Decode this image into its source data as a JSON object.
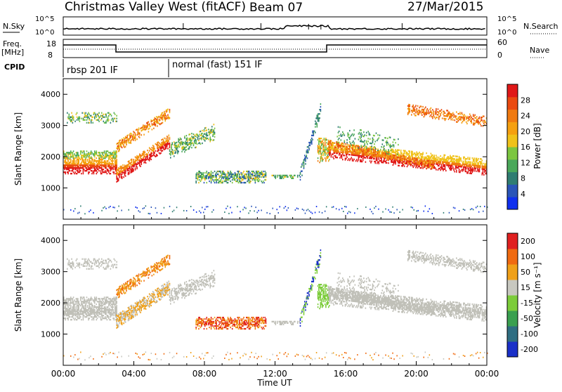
{
  "header": {
    "station": "Christmas Valley West (fitACF)",
    "beam": "Beam 07",
    "date": "27/Mar/2015"
  },
  "top_panels": {
    "nsky": {
      "label": "N.Sky",
      "ticks": [
        "10^5",
        "10^0"
      ],
      "right_ticks": [
        "10^5",
        "10^0"
      ],
      "right_label": "N.Search"
    },
    "freq": {
      "label_line1": "Freq.",
      "label_line2": "[MHz]",
      "ticks": [
        "18",
        "8"
      ],
      "right_ticks": [
        "60",
        "0"
      ],
      "right_label": "Nave"
    },
    "cpid": {
      "label": "CPID",
      "modes": [
        {
          "name": "rbsp 201 IF",
          "start_hour": 0
        },
        {
          "name": "normal (fast) 151 IF",
          "start_hour": 6
        }
      ]
    }
  },
  "chart_data": [
    {
      "type": "heatmap",
      "name": "power-panel",
      "ylabel": "Slant Range [km]",
      "yticks": [
        "1000",
        "2000",
        "3000",
        "4000"
      ],
      "ylim": [
        0,
        4500
      ],
      "xlim_hours": [
        0,
        24
      ],
      "colorbar": {
        "label": "Power [dB]",
        "ticks": [
          "4",
          "8",
          "12",
          "16",
          "20",
          "24",
          "28"
        ],
        "colors": [
          "#1030ee",
          "#2a55b8",
          "#2f7d72",
          "#4aa85a",
          "#7cc640",
          "#f0c21a",
          "#f5a010",
          "#f07a10",
          "#ea4a10",
          "#e01818"
        ]
      }
    },
    {
      "type": "heatmap",
      "name": "velocity-panel",
      "ylabel": "Slant Range [km]",
      "yticks": [
        "1000",
        "2000",
        "3000",
        "4000"
      ],
      "ylim": [
        0,
        4500
      ],
      "xlim_hours": [
        0,
        24
      ],
      "colorbar": {
        "label": "Velocity [m s⁻¹]",
        "ticks": [
          "200",
          "100",
          "50",
          "15",
          "-15",
          "-50",
          "-100",
          "-200"
        ],
        "colors": [
          "#1a30c8",
          "#2f6e82",
          "#3aa050",
          "#7ccc3a",
          "#c8c8c0",
          "#f0a018",
          "#f06a10",
          "#e02020"
        ]
      }
    }
  ],
  "xaxis": {
    "ticks": [
      "00:00",
      "04:00",
      "08:00",
      "12:00",
      "16:00",
      "20:00",
      "00:00"
    ],
    "label": "Time UT"
  },
  "colors": {
    "ground_scatter": "#c0c0b8",
    "axis": "#000000"
  }
}
